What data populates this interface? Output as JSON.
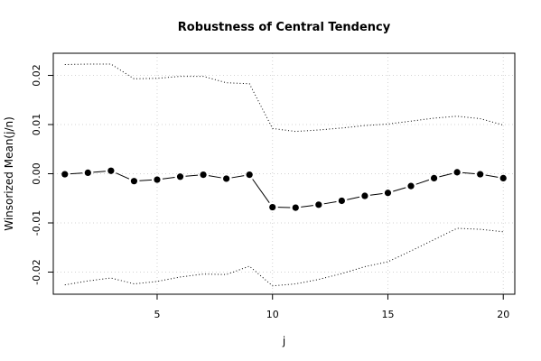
{
  "chart_data": {
    "type": "line",
    "title": "Robustness of Central Tendency",
    "xlabel": "j",
    "ylabel": "Winsorized Mean(j/n)",
    "xlim": [
      0.5,
      20.5
    ],
    "ylim": [
      -0.0245,
      0.0245
    ],
    "x_ticks": [
      5,
      10,
      15,
      20
    ],
    "x_tick_labels": [
      "5",
      "10",
      "15",
      "20"
    ],
    "y_ticks": [
      -0.02,
      -0.01,
      0.0,
      0.01,
      0.02
    ],
    "y_tick_labels": [
      "-0.02",
      "-0.01",
      "0.00",
      "0.01",
      "0.02"
    ],
    "grid": true,
    "x": [
      1,
      2,
      3,
      4,
      5,
      6,
      7,
      8,
      9,
      10,
      11,
      12,
      13,
      14,
      15,
      16,
      17,
      18,
      19,
      20
    ],
    "series": [
      {
        "style": "points-line",
        "values": [
          -0.0001,
          0.0002,
          0.0006,
          -0.0015,
          -0.0012,
          -0.0006,
          -0.0002,
          -0.001,
          -0.0002,
          -0.0068,
          -0.0069,
          -0.0063,
          -0.0055,
          -0.0045,
          -0.0039,
          -0.0025,
          -0.0009,
          0.0003,
          -0.0001,
          -0.0009
        ]
      },
      {
        "style": "dotted",
        "values": [
          0.0222,
          0.0223,
          0.0223,
          0.0193,
          0.0194,
          0.0198,
          0.0198,
          0.0185,
          0.0183,
          0.0092,
          0.0086,
          0.0089,
          0.0093,
          0.0098,
          0.0101,
          0.0107,
          0.0113,
          0.0117,
          0.0112,
          0.0099
        ]
      },
      {
        "style": "dotted",
        "values": [
          -0.0226,
          -0.0218,
          -0.0212,
          -0.0224,
          -0.0219,
          -0.021,
          -0.0204,
          -0.0205,
          -0.0188,
          -0.0228,
          -0.0224,
          -0.0215,
          -0.0203,
          -0.0189,
          -0.0179,
          -0.0157,
          -0.0134,
          -0.0111,
          -0.0113,
          -0.0118
        ]
      }
    ]
  }
}
